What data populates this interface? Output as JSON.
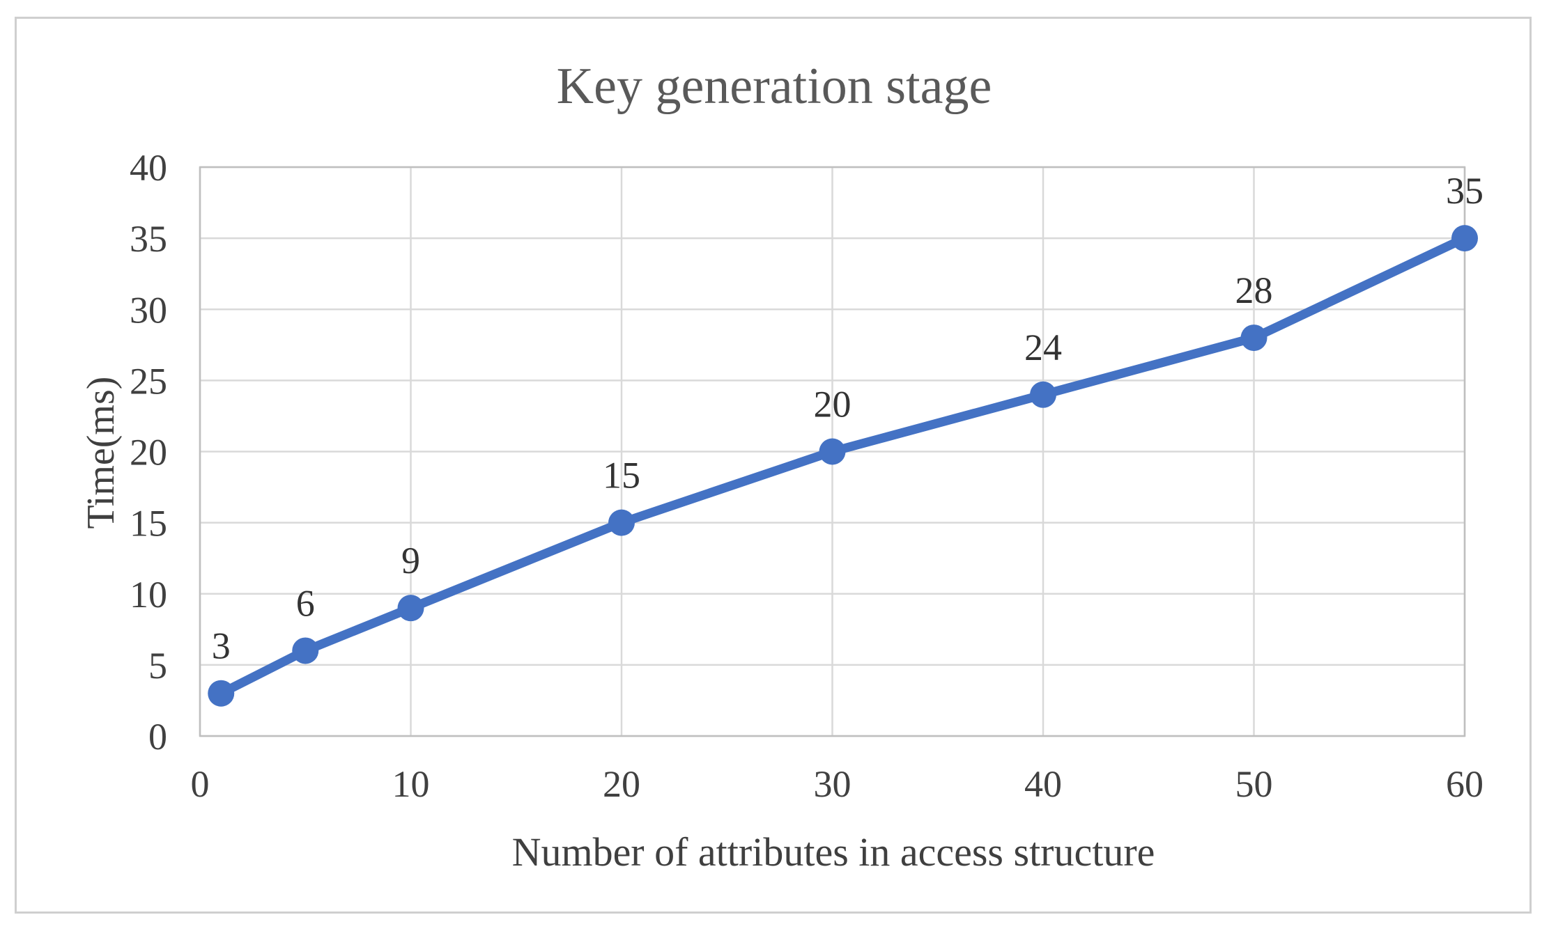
{
  "figure": {
    "background": "#ffffff",
    "border_color": "#cfcfcf"
  },
  "chart_data": {
    "type": "line",
    "title": "Key generation stage",
    "xlabel": "Number of attributes in access structure",
    "ylabel": "Time(ms)",
    "x": [
      1,
      5,
      10,
      20,
      30,
      40,
      50,
      60
    ],
    "values": [
      3,
      6,
      9,
      15,
      20,
      24,
      28,
      35
    ],
    "xlim": [
      0,
      60
    ],
    "ylim": [
      0,
      40
    ],
    "xticks": [
      0,
      10,
      20,
      30,
      40,
      50,
      60
    ],
    "yticks": [
      0,
      5,
      10,
      15,
      20,
      25,
      30,
      35,
      40
    ],
    "grid": true,
    "legend_position": "none",
    "data_labels": true,
    "colors": {
      "line": "#4472C4",
      "marker": "#4472C4",
      "grid": "#D9D9D9",
      "plot_border": "#BFBFBF",
      "tick_text": "#404040",
      "axis_title_text": "#3F3F3F",
      "title_text": "#595959",
      "data_label_text": "#333333"
    }
  }
}
